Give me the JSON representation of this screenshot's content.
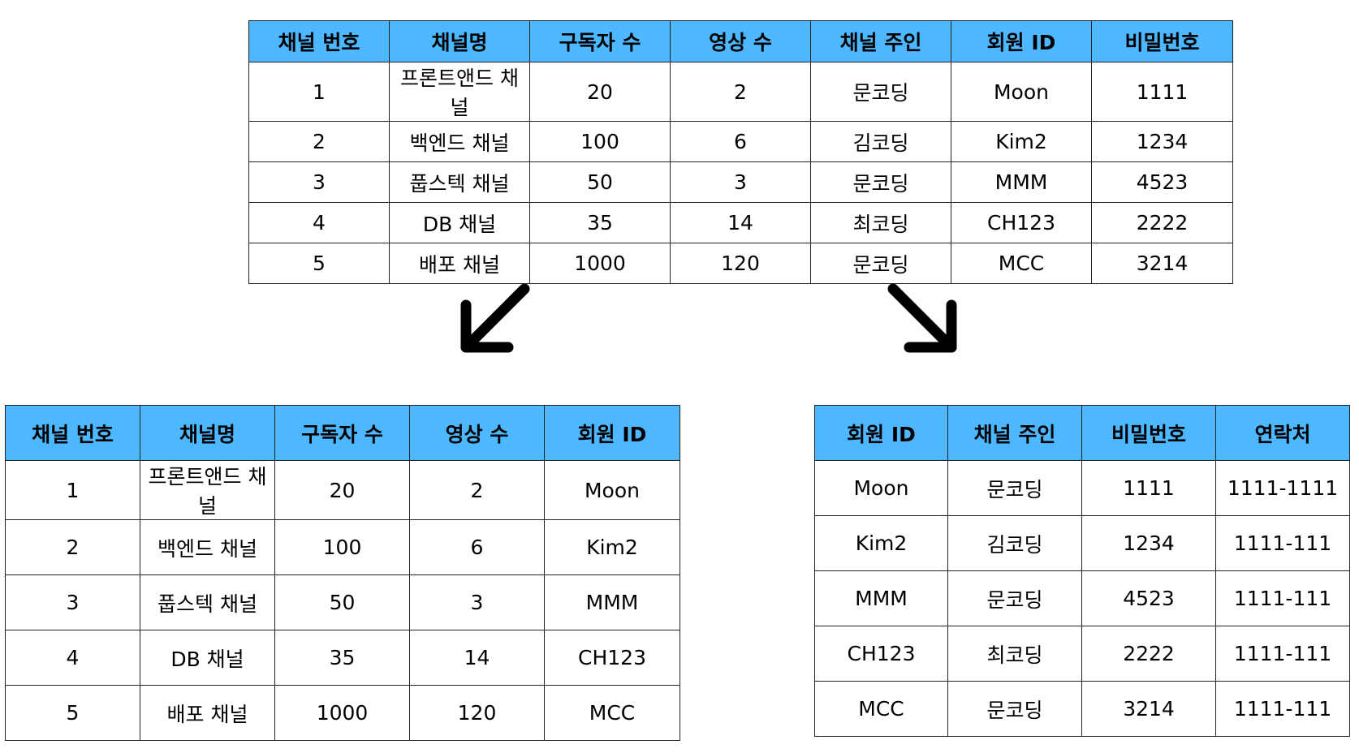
{
  "top_table": {
    "headers": [
      "채널 번호",
      "채널명",
      "구독자 수",
      "영상 수",
      "채널 주인",
      "회원 ID",
      "비밀번호"
    ],
    "rows": [
      [
        "1",
        "프론트앤드 채널",
        "20",
        "2",
        "문코딩",
        "Moon",
        "1111"
      ],
      [
        "2",
        "백엔드 채널",
        "100",
        "6",
        "김코딩",
        "Kim2",
        "1234"
      ],
      [
        "3",
        "풉스텍 채널",
        "50",
        "3",
        "문코딩",
        "MMM",
        "4523"
      ],
      [
        "4",
        "DB 채널",
        "35",
        "14",
        "최코딩",
        "CH123",
        "2222"
      ],
      [
        "5",
        "배포 채널",
        "1000",
        "120",
        "문코딩",
        "MCC",
        "3214"
      ]
    ]
  },
  "left_table": {
    "headers": [
      "채널 번호",
      "채널명",
      "구독자 수",
      "영상 수",
      "회원 ID"
    ],
    "rows": [
      [
        "1",
        "프론트앤드 채널",
        "20",
        "2",
        "Moon"
      ],
      [
        "2",
        "백엔드 채널",
        "100",
        "6",
        "Kim2"
      ],
      [
        "3",
        "풉스텍 채널",
        "50",
        "3",
        "MMM"
      ],
      [
        "4",
        "DB 채널",
        "35",
        "14",
        "CH123"
      ],
      [
        "5",
        "배포 채널",
        "1000",
        "120",
        "MCC"
      ]
    ]
  },
  "right_table": {
    "headers": [
      "회원 ID",
      "채널 주인",
      "비밀번호",
      "연락처"
    ],
    "rows": [
      [
        "Moon",
        "문코딩",
        "1111",
        "1111-1111"
      ],
      [
        "Kim2",
        "김코딩",
        "1234",
        "1111-111"
      ],
      [
        "MMM",
        "문코딩",
        "4523",
        "1111-111"
      ],
      [
        "CH123",
        "최코딩",
        "2222",
        "1111-111"
      ],
      [
        "MCC",
        "문코딩",
        "3214",
        "1111-111"
      ]
    ]
  },
  "arrows": [
    {
      "icon": "arrow-down-left-icon"
    },
    {
      "icon": "arrow-down-right-icon"
    }
  ],
  "colors": {
    "header_bg": "#4db8ff",
    "border": "#222222",
    "arrow": "#000000"
  }
}
